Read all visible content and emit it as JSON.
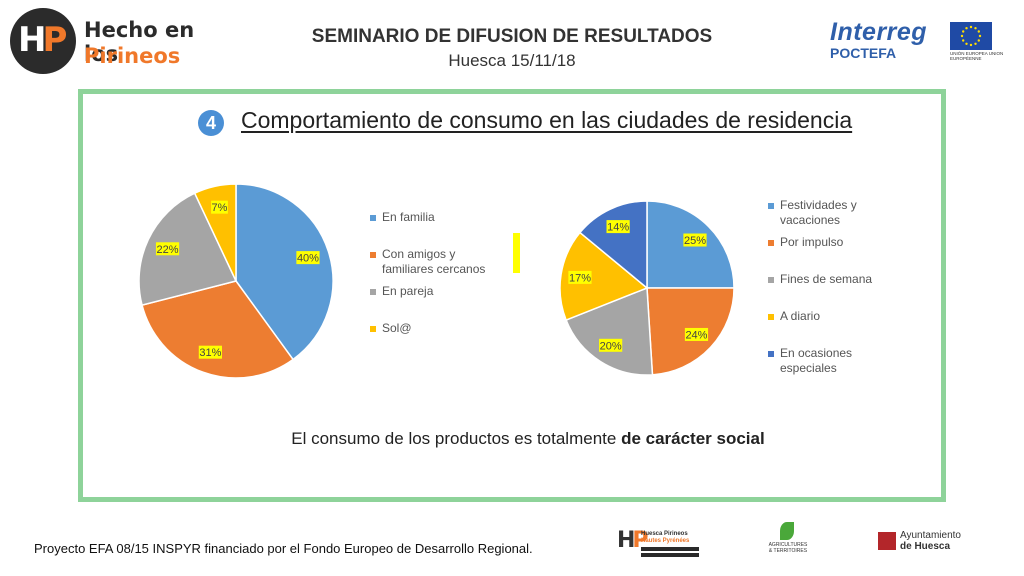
{
  "header": {
    "logo_line1": "Hecho en los",
    "logo_line2": "Pirineos",
    "title": "SEMINARIO DE DIFUSION DE RESULTADOS",
    "subtitle": "Huesca 15/11/18",
    "partner_logo_line1": "Interreg",
    "partner_logo_line2": "POCTEFA",
    "eu_text": "UNIÓN EUROPEA UNION EUROPÉENNE"
  },
  "section": {
    "number": "4",
    "title": "Comportamiento de consumo en las ciudades de residencia"
  },
  "chart_data": [
    {
      "type": "pie",
      "title": "",
      "categories": [
        "En familia",
        "Con amigos y familiares cercanos",
        "En pareja",
        "Sol@"
      ],
      "values": [
        40,
        31,
        22,
        7
      ],
      "labels": [
        "40%",
        "31%",
        "22%",
        "7%"
      ],
      "colors": [
        "#5b9bd5",
        "#ed7d31",
        "#a5a5a5",
        "#ffc000"
      ],
      "legend_position": "right"
    },
    {
      "type": "pie",
      "title": "",
      "categories": [
        "Festividades y vacaciones",
        "Por impulso",
        "Fines de semana",
        "A diario",
        "En ocasiones especiales"
      ],
      "values": [
        25,
        24,
        20,
        17,
        14
      ],
      "labels": [
        "25%",
        "24%",
        "20%",
        "17%",
        "14%"
      ],
      "colors": [
        "#5b9bd5",
        "#ed7d31",
        "#a5a5a5",
        "#ffc000",
        "#4472c4"
      ],
      "legend_position": "right"
    }
  ],
  "conclusion": {
    "text": "El consumo de los productos es totalmente ",
    "bold": "de carácter social"
  },
  "footer": {
    "text": "Proyecto EFA 08/15 INSPYR financiado por el Fondo Europeo de Desarrollo Regional.",
    "logo1_line1": "Huesca Pirineos",
    "logo1_line2": "Hautes Pyrénées",
    "logo2_text": "AGRICULTURES & TERRITOIRES",
    "logo3_line1": "Ayuntamiento",
    "logo3_line2": "de Huesca"
  },
  "colors": {
    "frame": "#8ed39a",
    "badge": "#4a8fd5",
    "label_highlight": "#ffff00"
  }
}
